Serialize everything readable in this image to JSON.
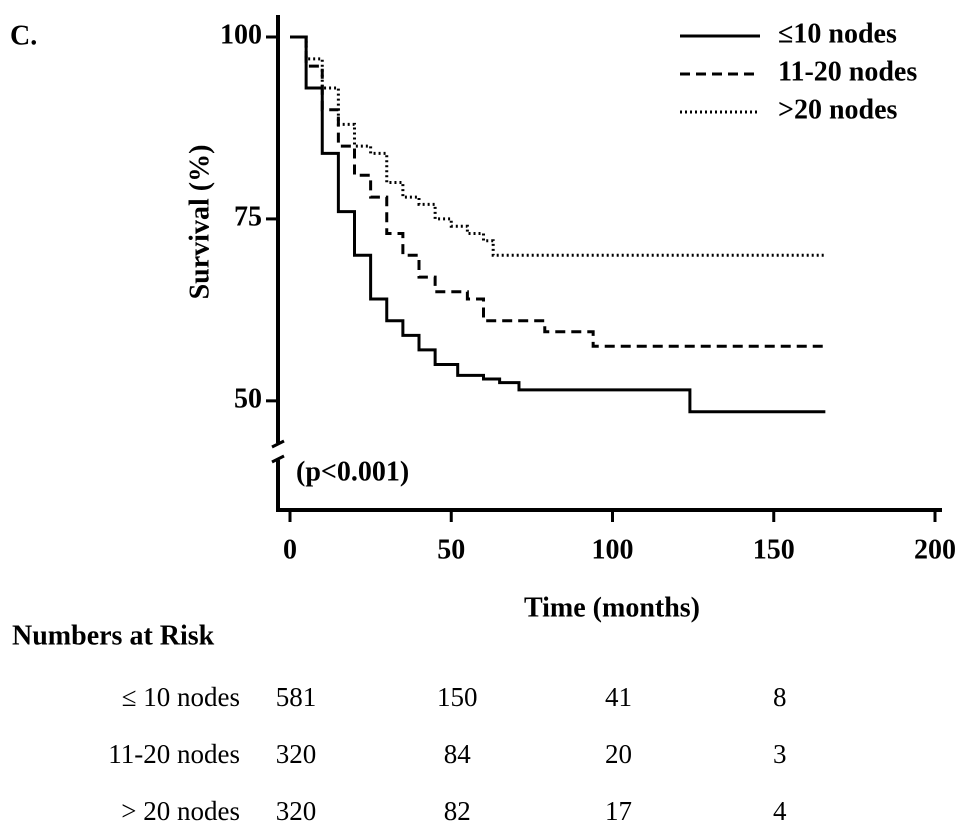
{
  "chart_data": {
    "type": "line",
    "panel_label": "C.",
    "xlabel": "Time (months)",
    "ylabel": "Survival (%)",
    "annotation": "(p<0.001)",
    "drawstyle": "steps-post",
    "xlim": [
      0,
      200
    ],
    "xticks": [
      0,
      50,
      100,
      150,
      200
    ],
    "ylim": [
      35,
      100
    ],
    "yticks": [
      50,
      75,
      100
    ],
    "series": [
      {
        "name": "≤10 nodes",
        "color": "#000000",
        "dash": "solid",
        "x": [
          0,
          5,
          10,
          15,
          20,
          25,
          30,
          35,
          40,
          45,
          52,
          60,
          65,
          71,
          124,
          166
        ],
        "values": [
          100,
          93,
          84,
          76,
          70,
          64,
          61,
          59,
          57,
          55,
          53.5,
          53,
          52.5,
          51.5,
          48.5,
          48.5
        ]
      },
      {
        "name": "11-20 nodes",
        "color": "#000000",
        "dash": "dashed",
        "x": [
          0,
          5,
          10,
          15,
          20,
          25,
          30,
          35,
          40,
          45,
          55,
          60,
          79,
          94,
          166
        ],
        "values": [
          100,
          96,
          90,
          85,
          81,
          78,
          73,
          70,
          67,
          65,
          64,
          61,
          59.5,
          57.5,
          57.5
        ]
      },
      {
        "name": ">20 nodes",
        "color": "#000000",
        "dash": "dotted",
        "x": [
          0,
          5,
          10,
          15,
          20,
          25,
          30,
          35,
          40,
          45,
          50,
          55,
          60,
          63,
          166
        ],
        "values": [
          100,
          97,
          93,
          88,
          85,
          84,
          80,
          78,
          77,
          75,
          74,
          73,
          72,
          70,
          70
        ]
      }
    ],
    "risk_table": {
      "title": "Numbers at Risk",
      "rows": [
        {
          "label": "≤ 10 nodes",
          "values": [
            581,
            150,
            41,
            8
          ]
        },
        {
          "label": "11-20 nodes",
          "values": [
            320,
            84,
            20,
            3
          ]
        },
        {
          "label": "> 20 nodes",
          "values": [
            320,
            82,
            17,
            4
          ]
        }
      ]
    }
  }
}
